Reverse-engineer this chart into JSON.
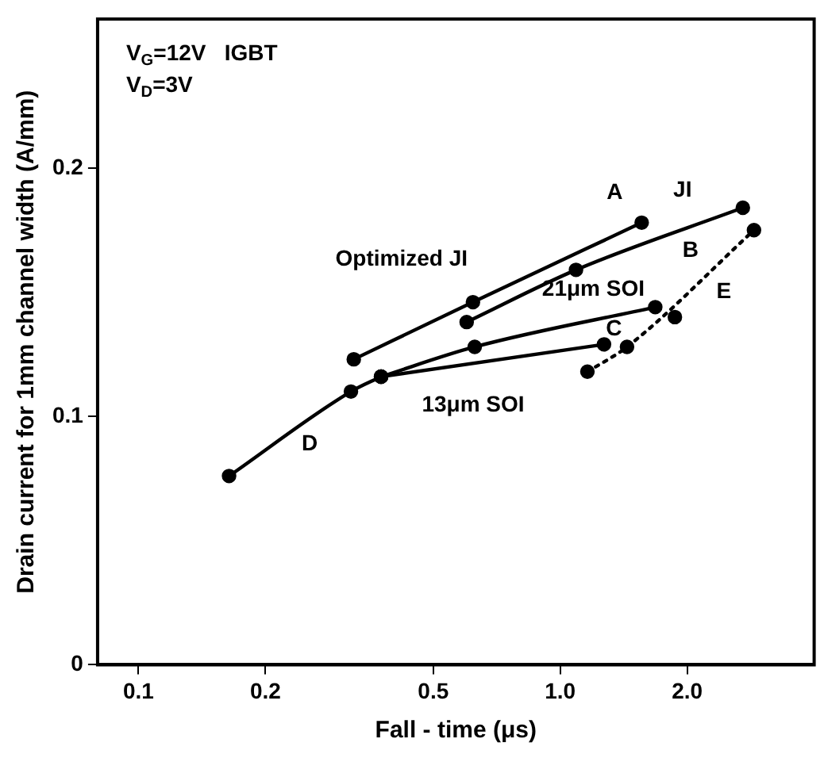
{
  "chart_data": {
    "type": "line",
    "xlabel": "Fall - time (μs)",
    "ylabel": "Drain current for 1mm channel width (A/mm)",
    "log": "x",
    "xlim": [
      0.08,
      4
    ],
    "ylim": [
      0,
      0.26
    ],
    "xticks": [
      0.1,
      0.2,
      0.5,
      {
        "value": 1,
        "label": "1.0"
      },
      {
        "value": 2,
        "label": "2.0"
      }
    ],
    "yticks": [
      0,
      0.1,
      0.2
    ],
    "grid": false,
    "legend": false,
    "marker": "circle",
    "line_style": "solid",
    "series": [
      {
        "color": "#000000",
        "x": [
          0.324,
          0.621,
          1.56
        ],
        "values": [
          0.123,
          0.146,
          0.178
        ]
      },
      {
        "color": "#000000",
        "x": [
          0.6,
          1.09,
          2.71
        ],
        "values": [
          0.138,
          0.159,
          0.184
        ]
      },
      {
        "color": "#000000",
        "x": [
          0.164,
          0.319,
          0.376
        ],
        "values": [
          0.076,
          0.11,
          0.116
        ]
      },
      {
        "color": "#000000",
        "x": [
          0.376,
          0.627,
          1.68
        ],
        "values": [
          0.116,
          0.128,
          0.144
        ]
      },
      {
        "color": "#000000",
        "x": [
          0.376,
          1.27
        ],
        "values": [
          0.116,
          0.129
        ]
      },
      {
        "color": "#000000",
        "line_style": "dotted",
        "x": [
          1.16,
          1.44,
          2.88
        ],
        "values": [
          0.118,
          0.128,
          0.175
        ]
      },
      {
        "color": "#000000",
        "type": "scatter",
        "x": [
          1.87
        ],
        "values": [
          0.14
        ]
      }
    ],
    "annotations": [
      "V$_{G}$=12V   IGBT",
      "V$_{D}$=3V",
      {
        "text": "Optimized JI",
        "x": 0.621,
        "y": 0.146
      },
      {
        "text": "A",
        "x": 1.56,
        "y": 0.178
      },
      {
        "text": "JI",
        "x": 2.71,
        "y": 0.184
      },
      {
        "text": "B",
        "x": 2.71,
        "y": 0.184
      },
      {
        "text": "21μm SOI",
        "x": 1.68,
        "y": 0.144
      },
      {
        "text": "C",
        "x": 1.68,
        "y": 0.144
      },
      {
        "text": "13μm SOI",
        "x": 0.376,
        "y": 0.116
      },
      {
        "text": "D",
        "x": 0.319,
        "y": 0.11
      },
      {
        "text": "E",
        "x": 2.88,
        "y": 0.175
      }
    ]
  }
}
